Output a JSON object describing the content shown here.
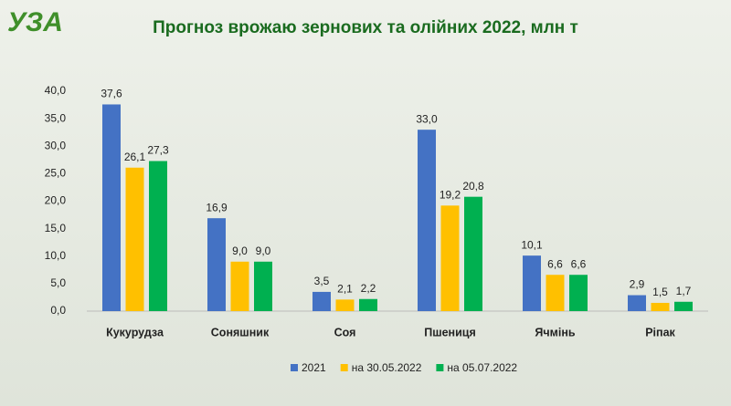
{
  "logo": "УЗА",
  "chart_data": {
    "type": "bar",
    "title": "Прогноз врожаю зернових та олійних 2022, млн т",
    "categories": [
      "Кукурудза",
      "Соняшник",
      "Соя",
      "Пшениця",
      "Ячмінь",
      "Ріпак"
    ],
    "series": [
      {
        "name": "2021",
        "color": "#4472c4",
        "values": [
          37.6,
          16.9,
          3.5,
          33.0,
          10.1,
          2.9
        ],
        "value_labels": [
          "37,6",
          "16,9",
          "3,5",
          "33,0",
          "10,1",
          "2,9"
        ]
      },
      {
        "name": "на 30.05.2022",
        "color": "#ffc000",
        "values": [
          26.1,
          9.0,
          2.1,
          19.2,
          6.6,
          1.5
        ],
        "value_labels": [
          "26,1",
          "9,0",
          "2,1",
          "19,2",
          "6,6",
          "1,5"
        ]
      },
      {
        "name": "на 05.07.2022",
        "color": "#00b050",
        "values": [
          27.3,
          9.0,
          2.2,
          20.8,
          6.6,
          1.7
        ],
        "value_labels": [
          "27,3",
          "9,0",
          "2,2",
          "20,8",
          "6,6",
          "1,7"
        ]
      }
    ],
    "ylim": [
      0,
      40
    ],
    "yticks": [
      {
        "value": 0,
        "label": "0,0"
      },
      {
        "value": 5,
        "label": "5,0"
      },
      {
        "value": 10,
        "label": "10,0"
      },
      {
        "value": 15,
        "label": "15,0"
      },
      {
        "value": 20,
        "label": "20,0"
      },
      {
        "value": 25,
        "label": "25,0"
      },
      {
        "value": 30,
        "label": "30,0"
      },
      {
        "value": 35,
        "label": "35,0"
      },
      {
        "value": 40,
        "label": "40,0"
      }
    ],
    "grid": false,
    "legend": "bottom"
  }
}
